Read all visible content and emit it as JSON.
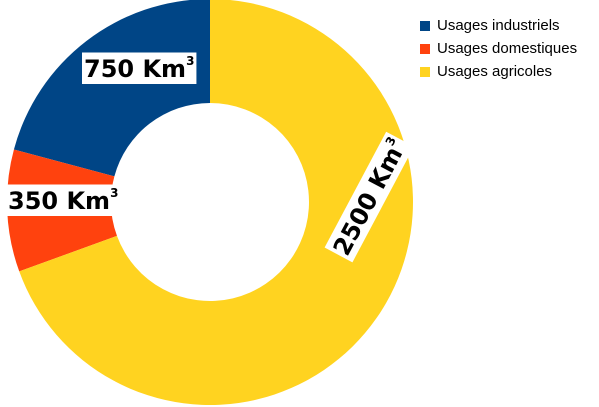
{
  "chart_data": {
    "type": "pie",
    "donut": true,
    "title": "",
    "slices": [
      {
        "name": "Usages industriels",
        "value": 750,
        "label": "750 Km",
        "unit_sup": "3",
        "color": "#004586"
      },
      {
        "name": "Usages domestiques",
        "value": 350,
        "label": "350 Km",
        "unit_sup": "3",
        "color": "#ff420e"
      },
      {
        "name": "Usages agricoles",
        "value": 2500,
        "label": "2500 Km",
        "unit_sup": "3",
        "color": "#ffd320"
      }
    ],
    "legend_placement": "top-right",
    "start_angle_deg": 0,
    "direction": "counterclockwise"
  }
}
